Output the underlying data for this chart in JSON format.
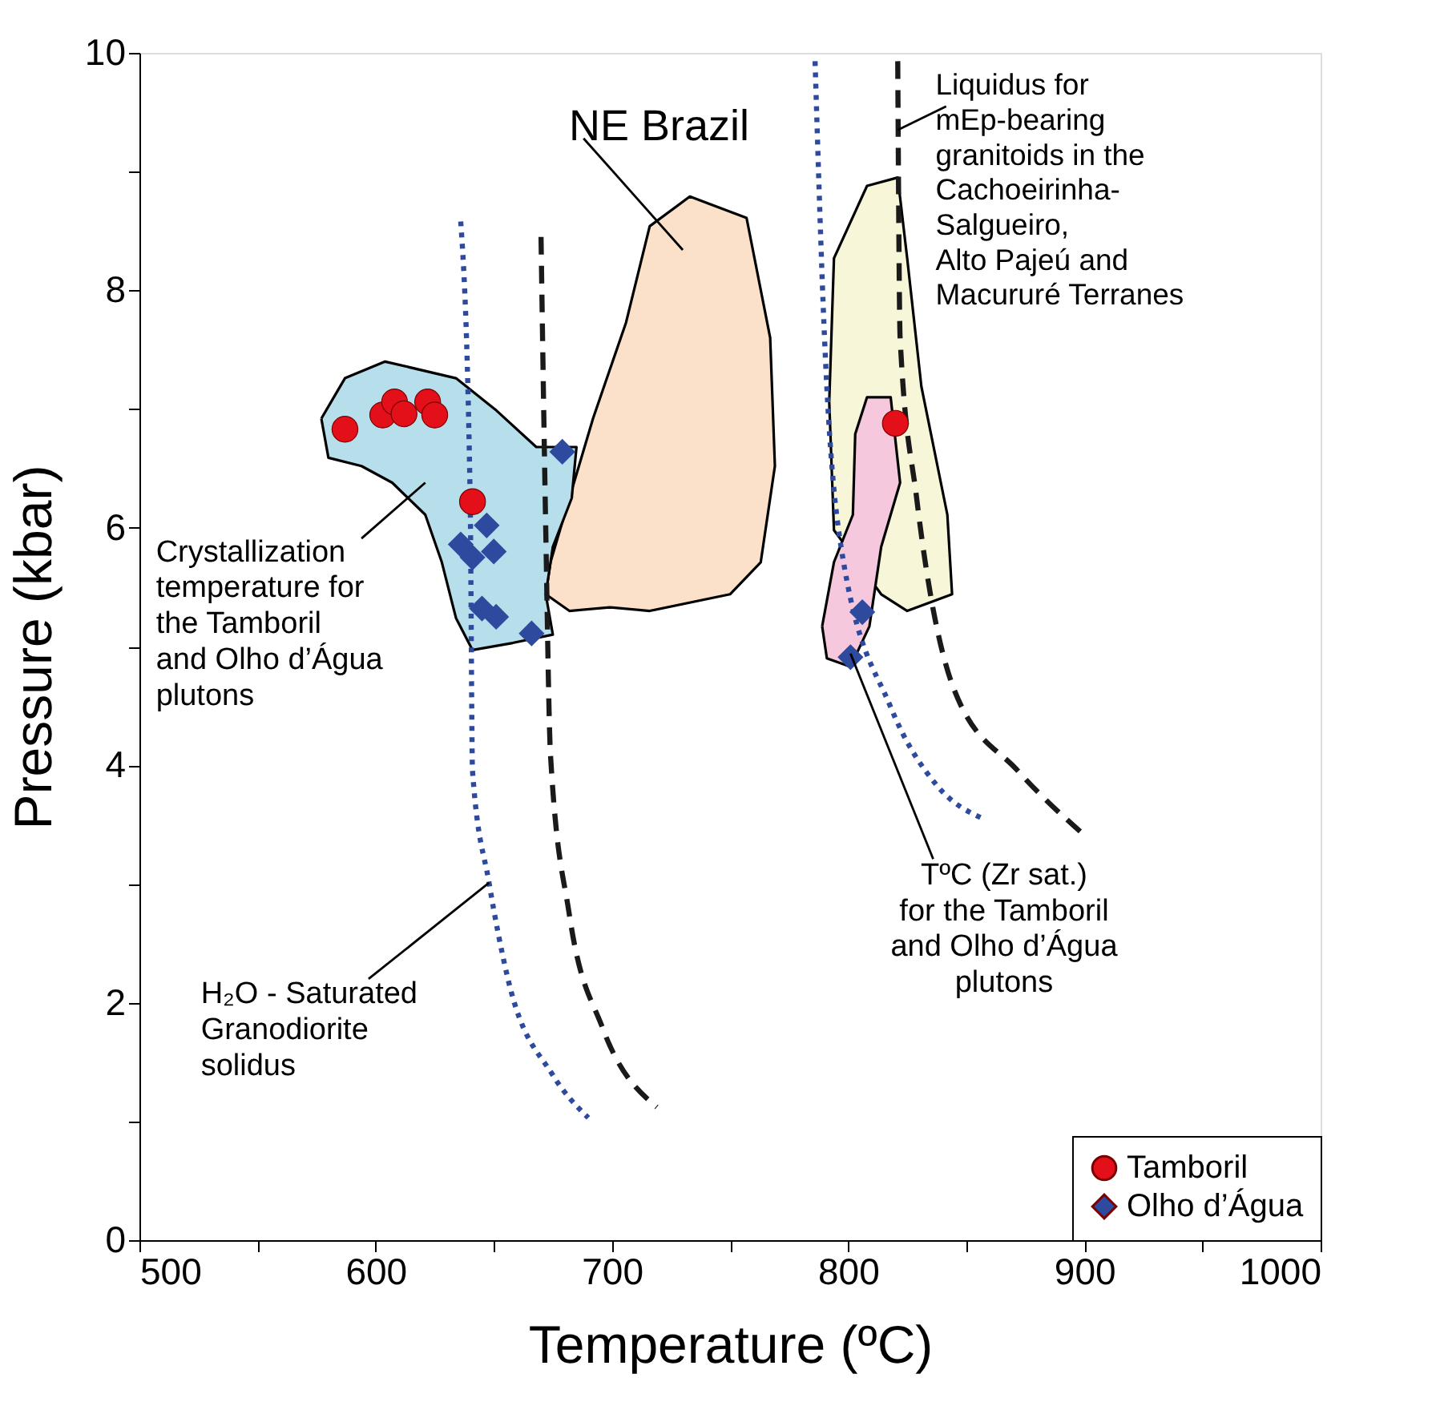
{
  "chart_data": {
    "type": "scatter",
    "xlabel": "Temperature (ºC)",
    "ylabel": "Pressure (kbar)",
    "xlim": [
      500,
      1000
    ],
    "ylim": [
      0,
      10
    ],
    "xticks": [
      500,
      {
        "value": 550,
        "label": null
      },
      600,
      {
        "value": 650,
        "label": null
      },
      700,
      {
        "value": 750,
        "label": null
      },
      800,
      {
        "value": 850,
        "label": null
      },
      900,
      {
        "value": 950,
        "label": null
      },
      1000
    ],
    "yticks": [
      0,
      {
        "value": 1,
        "label": null
      },
      2,
      {
        "value": 3,
        "label": null
      },
      4,
      {
        "value": 5,
        "label": null
      },
      6,
      {
        "value": 7,
        "label": null
      },
      8,
      {
        "value": 9,
        "label": null
      },
      10
    ],
    "grid": false,
    "legend": "bottom right",
    "series": [
      {
        "type": "area",
        "color": "#fbe1c9",
        "x": [
          674,
          682,
          692,
          706,
          716,
          733,
          757,
          767,
          769,
          763,
          750,
          716,
          699,
          682,
          672
        ],
        "values": [
          5.71,
          6.25,
          6.92,
          7.73,
          8.54,
          8.79,
          8.61,
          7.6,
          6.52,
          5.71,
          5.44,
          5.3,
          5.33,
          5.3,
          5.44
        ]
      },
      {
        "type": "area",
        "color": "#b7deeb",
        "x": [
          577,
          587,
          604,
          634,
          651,
          668,
          685,
          683,
          675,
          672,
          675,
          658,
          641,
          634,
          628,
          621,
          607,
          594,
          580
        ],
        "values": [
          6.92,
          7.26,
          7.4,
          7.26,
          6.99,
          6.68,
          6.68,
          6.25,
          5.84,
          5.44,
          5.1,
          5.03,
          4.97,
          5.24,
          5.71,
          6.11,
          6.38,
          6.52,
          6.59
        ]
      },
      {
        "type": "area",
        "color": "#f8f6d8",
        "x": [
          792,
          794,
          808,
          821,
          825,
          831,
          842,
          844,
          825,
          814,
          794
        ],
        "values": [
          7.06,
          8.27,
          8.88,
          8.95,
          8.27,
          7.19,
          6.11,
          5.44,
          5.3,
          5.44,
          5.98
        ]
      },
      {
        "type": "area",
        "color": "#f6c8dd",
        "x": [
          789,
          794,
          802,
          803,
          808,
          818,
          822,
          814,
          809,
          801,
          791
        ],
        "values": [
          5.17,
          5.71,
          6.11,
          6.79,
          7.1,
          7.1,
          6.38,
          5.84,
          5.17,
          4.83,
          4.9
        ]
      },
      {
        "type": "line",
        "line_style": "dotted",
        "color": "#2e4a9e",
        "x": [
          636,
          640,
          641,
          648,
          656,
          675,
          690
        ],
        "values": [
          8.58,
          6.25,
          3.95,
          3.01,
          2.2,
          1.39,
          1.03
        ]
      },
      {
        "type": "line",
        "line_style": "dashed",
        "color": "#1a1a1a",
        "x": [
          670,
          672,
          674,
          682,
          696,
          719
        ],
        "values": [
          8.45,
          5.98,
          4.09,
          2.74,
          1.79,
          1.12
        ]
      },
      {
        "type": "line",
        "line_style": "dotted",
        "color": "#2e4a9e",
        "x": [
          786,
          790,
          797,
          818,
          838,
          857
        ],
        "values": [
          9.93,
          7.6,
          5.84,
          4.49,
          3.82,
          3.55
        ]
      },
      {
        "type": "line",
        "line_style": "dashed",
        "color": "#1a1a1a",
        "x": [
          821,
          822,
          829,
          845,
          872,
          900
        ],
        "values": [
          9.93,
          7.6,
          6.25,
          4.63,
          3.95,
          3.41
        ]
      },
      {
        "name": "Tamboril",
        "marker": "circle",
        "color": "#e3101a",
        "x": [
          587,
          603,
          608,
          612,
          622,
          625,
          641,
          820
        ],
        "values": [
          6.83,
          6.95,
          7.06,
          6.96,
          7.06,
          6.95,
          6.22,
          6.88
        ]
      },
      {
        "name": "Olho d’Água",
        "marker": "diamond",
        "color": "#2e4a9e",
        "x": [
          679,
          636,
          647,
          641,
          650,
          645,
          651,
          666,
          806,
          801
        ],
        "values": [
          6.64,
          5.86,
          6.02,
          5.75,
          5.8,
          5.32,
          5.25,
          5.11,
          5.29,
          4.91
        ]
      }
    ],
    "annotations": [
      "NE Brazil",
      {
        "text": "Liquidus for\nmEp-bearing\ngranitoids in the\nCachoeirinha-\nSalgueiro,\nAlto Pajeú and\nMacururé Terranes",
        "x": 821,
        "y": 9.35
      },
      "Crystallization\ntemperature for\nthe Tamboril\nand Olho d’Água\nplutons",
      {
        "text": "H₂O - Saturated\nGranodiorite\nsolidus",
        "x": 648,
        "y": 3.01
      },
      {
        "text": "TºC (Zr sat.)\nfor the Tamboril\nand Olho d’Água\nplutons",
        "x": 801,
        "y": 4.94
      }
    ]
  }
}
